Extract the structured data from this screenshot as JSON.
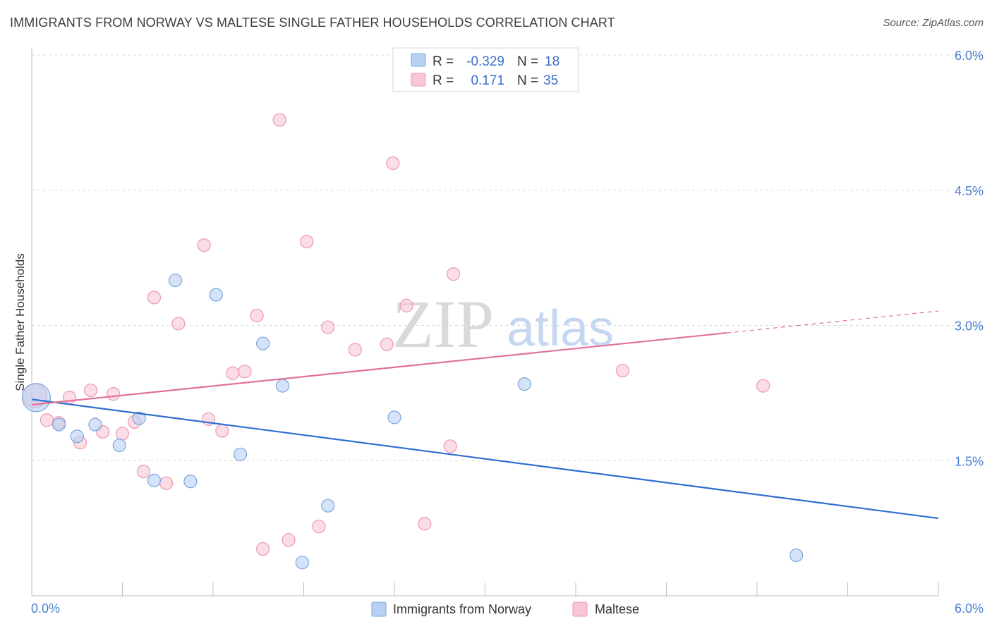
{
  "header": {
    "title": "IMMIGRANTS FROM NORWAY VS MALTESE SINGLE FATHER HOUSEHOLDS CORRELATION CHART",
    "source": "Source: ZipAtlas.com"
  },
  "watermark": {
    "zip": "ZIP",
    "atlas": "atlas"
  },
  "colors": {
    "norway_fill": "#b8d1f3",
    "norway_stroke": "#7aa5e0",
    "norway_line": "#2e6fd0",
    "maltese_fill": "#f8c6d6",
    "maltese_stroke": "#ec97b3",
    "maltese_line": "#e2719a",
    "tick_text": "#4a7fd1",
    "grid": "#dcdcdc"
  },
  "legend": {
    "rows": [
      {
        "r_label": "R =",
        "r_value": "-0.329",
        "n_label": "N =",
        "n_value": "18"
      },
      {
        "r_label": "R =",
        "r_value": "0.171",
        "n_label": "N =",
        "n_value": "35"
      }
    ]
  },
  "chart_data": {
    "type": "scatter",
    "title": "IMMIGRANTS FROM NORWAY VS MALTESE SINGLE FATHER HOUSEHOLDS CORRELATION CHART",
    "xlabel": "",
    "ylabel": "Single Father Households",
    "xlim": [
      0,
      6.0
    ],
    "ylim": [
      0,
      6.0
    ],
    "x_tick_labels": [
      "0.0%",
      "6.0%"
    ],
    "y_ticks": [
      1.5,
      3.0,
      4.5,
      6.0
    ],
    "y_tick_labels": [
      "1.5%",
      "3.0%",
      "4.5%",
      "6.0%"
    ],
    "grid": true,
    "legend_position": "top-center",
    "series": [
      {
        "name": "Immigrants from Norway",
        "r": -0.329,
        "n": 18,
        "points": [
          [
            0.03,
            2.2,
            20
          ],
          [
            0.18,
            1.9,
            9
          ],
          [
            0.3,
            1.77,
            9
          ],
          [
            0.42,
            1.9,
            9
          ],
          [
            0.58,
            1.67,
            9
          ],
          [
            0.71,
            1.97,
            9
          ],
          [
            0.81,
            1.28,
            9
          ],
          [
            0.95,
            3.5,
            9
          ],
          [
            1.05,
            1.27,
            9
          ],
          [
            1.22,
            3.34,
            9
          ],
          [
            1.38,
            1.57,
            9
          ],
          [
            1.53,
            2.8,
            9
          ],
          [
            1.66,
            2.33,
            9
          ],
          [
            1.79,
            0.37,
            9
          ],
          [
            1.96,
            1.0,
            9
          ],
          [
            2.4,
            1.98,
            9
          ],
          [
            3.26,
            2.35,
            9
          ],
          [
            5.06,
            0.45,
            9
          ]
        ],
        "trend": {
          "x0": 0.0,
          "y0": 2.18,
          "x1": 6.0,
          "y1": 0.86,
          "dashed_from": 6.0
        }
      },
      {
        "name": "Maltese",
        "r": 0.171,
        "n": 35,
        "points": [
          [
            0.02,
            2.22,
            17
          ],
          [
            0.1,
            1.95,
            9
          ],
          [
            0.18,
            1.92,
            9
          ],
          [
            0.32,
            1.7,
            9
          ],
          [
            0.25,
            2.2,
            9
          ],
          [
            0.39,
            2.28,
            9
          ],
          [
            0.47,
            1.82,
            9
          ],
          [
            0.54,
            2.24,
            9
          ],
          [
            0.6,
            1.8,
            9
          ],
          [
            0.68,
            1.93,
            9
          ],
          [
            0.74,
            1.38,
            9
          ],
          [
            0.81,
            3.31,
            9
          ],
          [
            0.89,
            1.25,
            9
          ],
          [
            0.97,
            3.02,
            9
          ],
          [
            1.14,
            3.89,
            9
          ],
          [
            1.17,
            1.96,
            9
          ],
          [
            1.26,
            1.83,
            9
          ],
          [
            1.33,
            2.47,
            9
          ],
          [
            1.41,
            2.49,
            9
          ],
          [
            1.49,
            3.11,
            9
          ],
          [
            1.53,
            0.52,
            9
          ],
          [
            1.64,
            5.28,
            9
          ],
          [
            1.7,
            0.62,
            9
          ],
          [
            1.82,
            3.93,
            9
          ],
          [
            1.9,
            0.77,
            9
          ],
          [
            1.96,
            2.98,
            9
          ],
          [
            2.14,
            2.73,
            9
          ],
          [
            2.35,
            2.79,
            9
          ],
          [
            2.39,
            4.8,
            9
          ],
          [
            2.48,
            3.22,
            9
          ],
          [
            2.6,
            0.8,
            9
          ],
          [
            2.77,
            1.66,
            9
          ],
          [
            2.79,
            3.57,
            9
          ],
          [
            3.91,
            2.5,
            9
          ],
          [
            4.84,
            2.33,
            9
          ]
        ],
        "trend": {
          "x0": 0.0,
          "y0": 2.12,
          "x1": 6.0,
          "y1": 3.16,
          "dashed_from": 4.6
        }
      }
    ]
  }
}
